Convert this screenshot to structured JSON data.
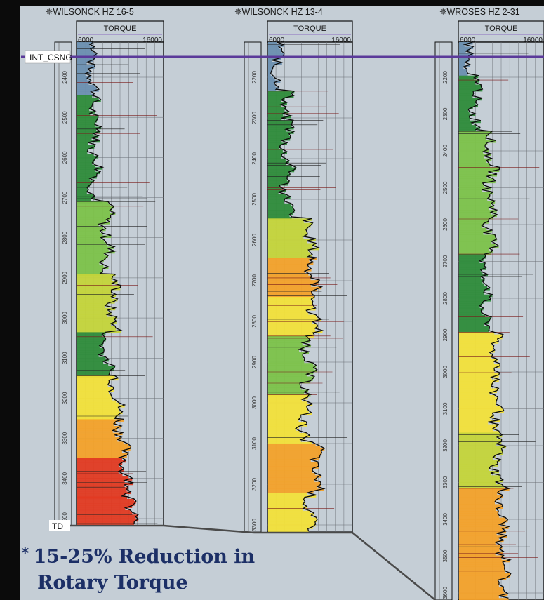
{
  "note": {
    "bullet": "*",
    "line1": "15-25% Reduction in",
    "line2": "Rotary Torque"
  },
  "chart_data": {
    "type": "well-log",
    "curve": "TORQUE",
    "scale_min": 6000,
    "scale_max": 16000,
    "marker_top": "INT_CSNG",
    "marker_bottom": "TD",
    "colors": {
      "background": "#c5ced6",
      "correlation_line": "#5b3a9a",
      "green": "#2e8b3a",
      "yellow": "#f2e03a",
      "orange": "#f3a12a",
      "red": "#e23a22",
      "blue": "#6c8fb0"
    },
    "wells": [
      {
        "name": "WILSONCK HZ 16-5",
        "depth_labels": [
          "2400",
          "2500",
          "2600",
          "2700",
          "2800",
          "2900",
          "3000",
          "3100",
          "3200",
          "3300",
          "3400",
          "3500"
        ],
        "zones": [
          {
            "from": 0.0,
            "to": 0.11,
            "color": "blue",
            "torque": 7800
          },
          {
            "from": 0.11,
            "to": 0.33,
            "color": "green",
            "torque": 8200
          },
          {
            "from": 0.33,
            "to": 0.48,
            "color": "lightgreen",
            "torque": 9500
          },
          {
            "from": 0.48,
            "to": 0.6,
            "color": "yellowgreen",
            "torque": 10200
          },
          {
            "from": 0.6,
            "to": 0.69,
            "color": "green",
            "torque": 9400
          },
          {
            "from": 0.69,
            "to": 0.78,
            "color": "yellow",
            "torque": 10600
          },
          {
            "from": 0.78,
            "to": 0.86,
            "color": "orange",
            "torque": 11200
          },
          {
            "from": 0.86,
            "to": 0.94,
            "color": "red",
            "torque": 11800
          },
          {
            "from": 0.94,
            "to": 1.0,
            "color": "red",
            "torque": 12500
          }
        ]
      },
      {
        "name": "WILSONCK HZ 13-4",
        "depth_labels": [
          "2200",
          "2300",
          "2400",
          "2500",
          "2600",
          "2700",
          "2800",
          "2900",
          "3000",
          "3100",
          "3200",
          "3300"
        ],
        "zones": [
          {
            "from": 0.0,
            "to": 0.1,
            "color": "blue",
            "torque": 7200
          },
          {
            "from": 0.1,
            "to": 0.36,
            "color": "green",
            "torque": 8300
          },
          {
            "from": 0.36,
            "to": 0.44,
            "color": "yellowgreen",
            "torque": 11000
          },
          {
            "from": 0.44,
            "to": 0.52,
            "color": "orange",
            "torque": 11400
          },
          {
            "from": 0.52,
            "to": 0.6,
            "color": "yellow",
            "torque": 11600
          },
          {
            "from": 0.6,
            "to": 0.72,
            "color": "lightgreen",
            "torque": 10800
          },
          {
            "from": 0.72,
            "to": 0.82,
            "color": "yellow",
            "torque": 10400
          },
          {
            "from": 0.82,
            "to": 0.92,
            "color": "orange",
            "torque": 11800
          },
          {
            "from": 0.92,
            "to": 1.0,
            "color": "yellow",
            "torque": 11000
          }
        ]
      },
      {
        "name": "WROSES HZ 2-31",
        "depth_labels": [
          "2200",
          "2300",
          "2400",
          "2500",
          "2600",
          "2700",
          "2800",
          "2900",
          "3000",
          "3100",
          "3200",
          "3300",
          "3400",
          "3500",
          "3600"
        ],
        "zones": [
          {
            "from": 0.0,
            "to": 0.06,
            "color": "blue",
            "torque": 7000
          },
          {
            "from": 0.06,
            "to": 0.16,
            "color": "green",
            "torque": 8000
          },
          {
            "from": 0.16,
            "to": 0.38,
            "color": "lightgreen",
            "torque": 9800
          },
          {
            "from": 0.38,
            "to": 0.52,
            "color": "green",
            "torque": 9200
          },
          {
            "from": 0.52,
            "to": 0.7,
            "color": "yellow",
            "torque": 10400
          },
          {
            "from": 0.7,
            "to": 0.8,
            "color": "yellowgreen",
            "torque": 10600
          },
          {
            "from": 0.8,
            "to": 0.92,
            "color": "orange",
            "torque": 11000
          },
          {
            "from": 0.92,
            "to": 1.0,
            "color": "orange",
            "torque": 11400
          }
        ]
      }
    ]
  }
}
